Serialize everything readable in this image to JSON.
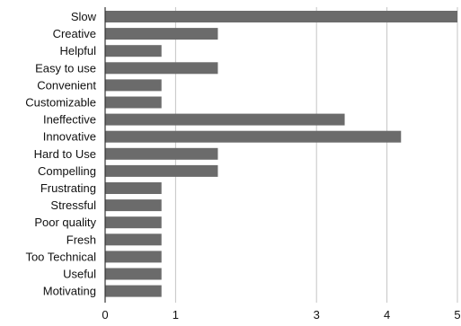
{
  "chart_data": {
    "type": "bar",
    "orientation": "horizontal",
    "categories": [
      "Slow",
      "Creative",
      "Helpful",
      "Easy to use",
      "Convenient",
      "Customizable",
      "Ineffective",
      "Innovative",
      "Hard to Use",
      "Compelling",
      "Frustrating",
      "Stressful",
      "Poor quality",
      "Fresh",
      "Too Technical",
      "Useful",
      "Motivating"
    ],
    "values": [
      5.0,
      1.6,
      0.8,
      1.6,
      0.8,
      0.8,
      3.4,
      4.2,
      1.6,
      1.6,
      0.8,
      0.8,
      0.8,
      0.8,
      0.8,
      0.8,
      0.8
    ],
    "xlim": [
      0,
      5
    ],
    "xticks": [
      0,
      1,
      3,
      4,
      5
    ],
    "grid": "vertical",
    "legend": "none",
    "colors": {
      "bar": "#6b6b6b",
      "grid": "#c4c4c4",
      "axis": "#333333"
    }
  }
}
